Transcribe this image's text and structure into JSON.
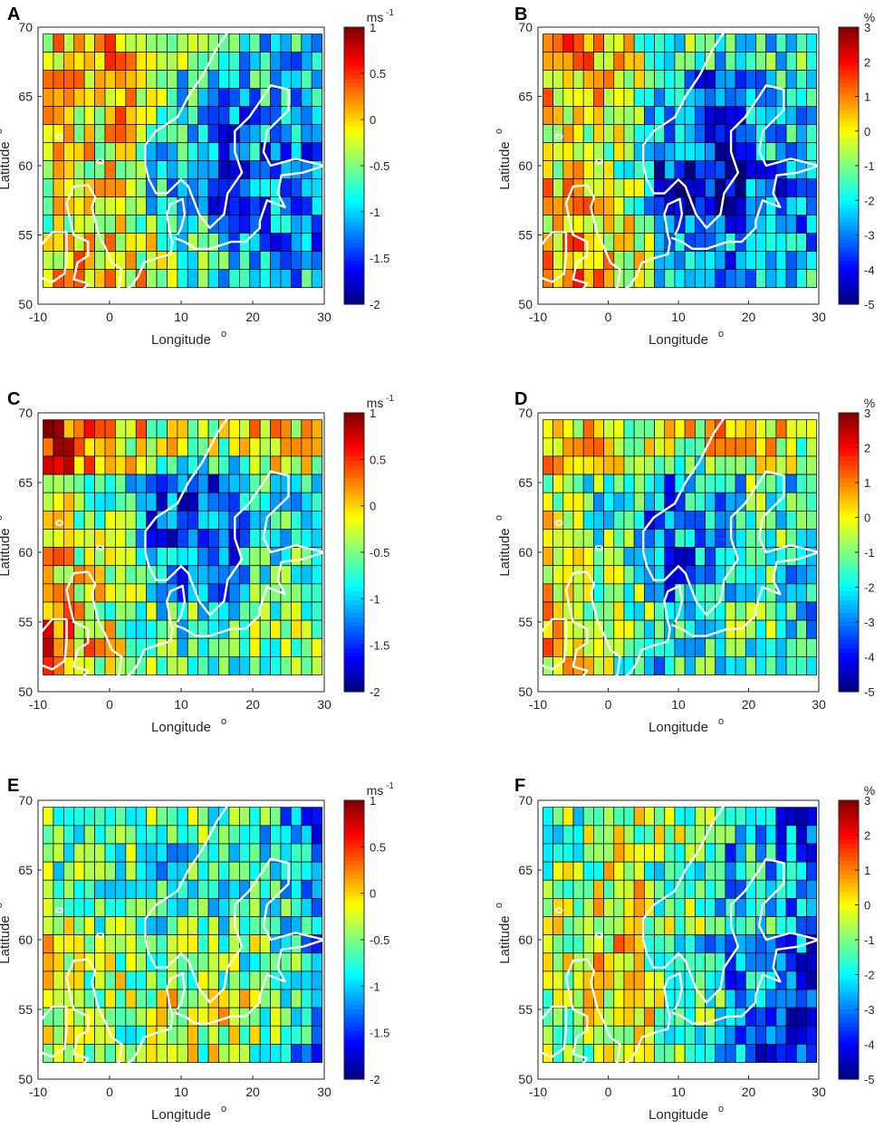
{
  "figure": {
    "panel_count": 6
  },
  "chart_data": [
    {
      "panel": "A",
      "type": "heatmap",
      "title": "",
      "xlabel": "Longitude",
      "xlabel_sup": "o",
      "ylabel": "Latitude",
      "ylabel_sup": "o",
      "xlim": [
        -10,
        30
      ],
      "ylim": [
        50,
        70
      ],
      "xticks": [
        -10,
        0,
        10,
        20,
        30
      ],
      "yticks": [
        50,
        55,
        60,
        65,
        70
      ],
      "grid_cells": {
        "cols": 27,
        "rows": 14
      },
      "colorbar": {
        "label": "ms",
        "label_sup": "-1",
        "range": [
          -2,
          1
        ],
        "ticks": [
          1,
          0.5,
          0,
          -0.5,
          -1,
          -1.5,
          -2
        ],
        "colormap": "jet"
      },
      "coastline_color": "#ffffff"
    },
    {
      "panel": "B",
      "type": "heatmap",
      "title": "",
      "xlabel": "Longitude",
      "xlabel_sup": "o",
      "ylabel": "Latitude",
      "ylabel_sup": "o",
      "xlim": [
        -10,
        30
      ],
      "ylim": [
        50,
        70
      ],
      "xticks": [
        -10,
        0,
        10,
        20,
        30
      ],
      "yticks": [
        50,
        55,
        60,
        65,
        70
      ],
      "grid_cells": {
        "cols": 27,
        "rows": 14
      },
      "colorbar": {
        "label": "%",
        "label_sup": "",
        "range": [
          -5,
          3
        ],
        "ticks": [
          3,
          2,
          1,
          0,
          -1,
          -2,
          -3,
          -4,
          -5
        ],
        "colormap": "jet"
      },
      "coastline_color": "#ffffff"
    },
    {
      "panel": "C",
      "type": "heatmap",
      "title": "",
      "xlabel": "Longitude",
      "xlabel_sup": "o",
      "ylabel": "Latitude",
      "ylabel_sup": "o",
      "xlim": [
        -10,
        30
      ],
      "ylim": [
        50,
        70
      ],
      "xticks": [
        -10,
        0,
        10,
        20,
        30
      ],
      "yticks": [
        50,
        55,
        60,
        65,
        70
      ],
      "grid_cells": {
        "cols": 27,
        "rows": 14
      },
      "colorbar": {
        "label": "ms",
        "label_sup": "-1",
        "range": [
          -2,
          1
        ],
        "ticks": [
          1,
          0.5,
          0,
          -0.5,
          -1,
          -1.5,
          -2
        ],
        "colormap": "jet"
      },
      "coastline_color": "#ffffff"
    },
    {
      "panel": "D",
      "type": "heatmap",
      "title": "",
      "xlabel": "Longitude",
      "xlabel_sup": "o",
      "ylabel": "Latitude",
      "ylabel_sup": "o",
      "xlim": [
        -10,
        30
      ],
      "ylim": [
        50,
        70
      ],
      "xticks": [
        -10,
        0,
        10,
        20,
        30
      ],
      "yticks": [
        50,
        55,
        60,
        65,
        70
      ],
      "grid_cells": {
        "cols": 27,
        "rows": 14
      },
      "colorbar": {
        "label": "%",
        "label_sup": "",
        "range": [
          -5,
          3
        ],
        "ticks": [
          3,
          2,
          1,
          0,
          -1,
          -2,
          -3,
          -4,
          -5
        ],
        "colormap": "jet"
      },
      "coastline_color": "#ffffff"
    },
    {
      "panel": "E",
      "type": "heatmap",
      "title": "",
      "xlabel": "Longitude",
      "xlabel_sup": "o",
      "ylabel": "Latitude",
      "ylabel_sup": "o",
      "xlim": [
        -10,
        30
      ],
      "ylim": [
        50,
        70
      ],
      "xticks": [
        -10,
        0,
        10,
        20,
        30
      ],
      "yticks": [
        50,
        55,
        60,
        65,
        70
      ],
      "grid_cells": {
        "cols": 27,
        "rows": 14
      },
      "colorbar": {
        "label": "ms",
        "label_sup": "-1",
        "range": [
          -2,
          1
        ],
        "ticks": [
          1,
          0.5,
          0,
          -0.5,
          -1,
          -1.5,
          -2
        ],
        "colormap": "jet"
      },
      "coastline_color": "#ffffff"
    },
    {
      "panel": "F",
      "type": "heatmap",
      "title": "",
      "xlabel": "Longitude",
      "xlabel_sup": "o",
      "ylabel": "Latitude",
      "ylabel_sup": "o",
      "xlim": [
        -10,
        30
      ],
      "ylim": [
        50,
        70
      ],
      "xticks": [
        -10,
        0,
        10,
        20,
        30
      ],
      "yticks": [
        50,
        55,
        60,
        65,
        70
      ],
      "grid_cells": {
        "cols": 27,
        "rows": 14
      },
      "colorbar": {
        "label": "%",
        "label_sup": "",
        "range": [
          -5,
          3
        ],
        "ticks": [
          3,
          2,
          1,
          0,
          -1,
          -2,
          -3,
          -4,
          -5
        ],
        "colormap": "jet"
      },
      "coastline_color": "#ffffff"
    }
  ]
}
